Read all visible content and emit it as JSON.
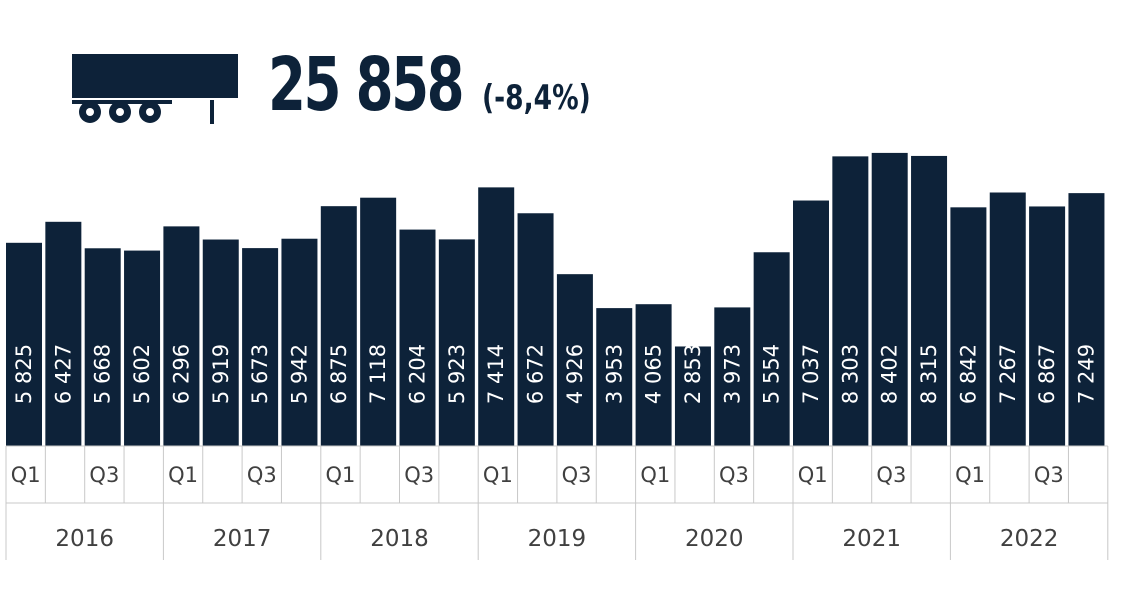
{
  "header": {
    "total": "25 858",
    "change": "(-8,4%)",
    "icon": "truck-trailer-icon"
  },
  "colors": {
    "bar": "#0d2239",
    "bar_label": "#ffffff",
    "axis_text": "#404040",
    "axis_line": "#c8c8c8"
  },
  "chart_data": {
    "type": "bar",
    "categories": [
      "2016 Q1",
      "2016 Q2",
      "2016 Q3",
      "2016 Q4",
      "2017 Q1",
      "2017 Q2",
      "2017 Q3",
      "2017 Q4",
      "2018 Q1",
      "2018 Q2",
      "2018 Q3",
      "2018 Q4",
      "2019 Q1",
      "2019 Q2",
      "2019 Q3",
      "2019 Q4",
      "2020 Q1",
      "2020 Q2",
      "2020 Q3",
      "2020 Q4",
      "2021 Q1",
      "2021 Q2",
      "2021 Q3",
      "2021 Q4",
      "2022 Q1",
      "2022 Q2",
      "2022 Q3",
      "2022 Q4"
    ],
    "values": [
      5825,
      6427,
      5668,
      5602,
      6296,
      5919,
      5673,
      5942,
      6875,
      7118,
      6204,
      5923,
      7414,
      6672,
      4926,
      3953,
      4065,
      2853,
      3973,
      5554,
      7037,
      8303,
      8402,
      8315,
      6842,
      7267,
      6867,
      7249
    ],
    "value_labels": [
      "5 825",
      "6 427",
      "5 668",
      "5 602",
      "6 296",
      "5 919",
      "5 673",
      "5 942",
      "6 875",
      "7 118",
      "6 204",
      "5 923",
      "7 414",
      "6 672",
      "4 926",
      "3 953",
      "4 065",
      "2 853",
      "3 973",
      "5 554",
      "7 037",
      "8 303",
      "8 402",
      "8 315",
      "6 842",
      "7 267",
      "6 867",
      "7 249"
    ],
    "quarter_ticks": [
      "Q1",
      "",
      "Q3",
      "",
      "Q1",
      "",
      "Q3",
      "",
      "Q1",
      "",
      "Q3",
      "",
      "Q1",
      "",
      "Q3",
      "",
      "Q1",
      "",
      "Q3",
      "",
      "Q1",
      "",
      "Q3",
      "",
      "Q1",
      "",
      "Q3",
      ""
    ],
    "years": [
      "2016",
      "2017",
      "2018",
      "2019",
      "2020",
      "2021",
      "2022"
    ],
    "ylim": [
      0,
      8600
    ],
    "title": "",
    "xlabel": "",
    "ylabel": "",
    "grid": false,
    "legend": "none"
  }
}
